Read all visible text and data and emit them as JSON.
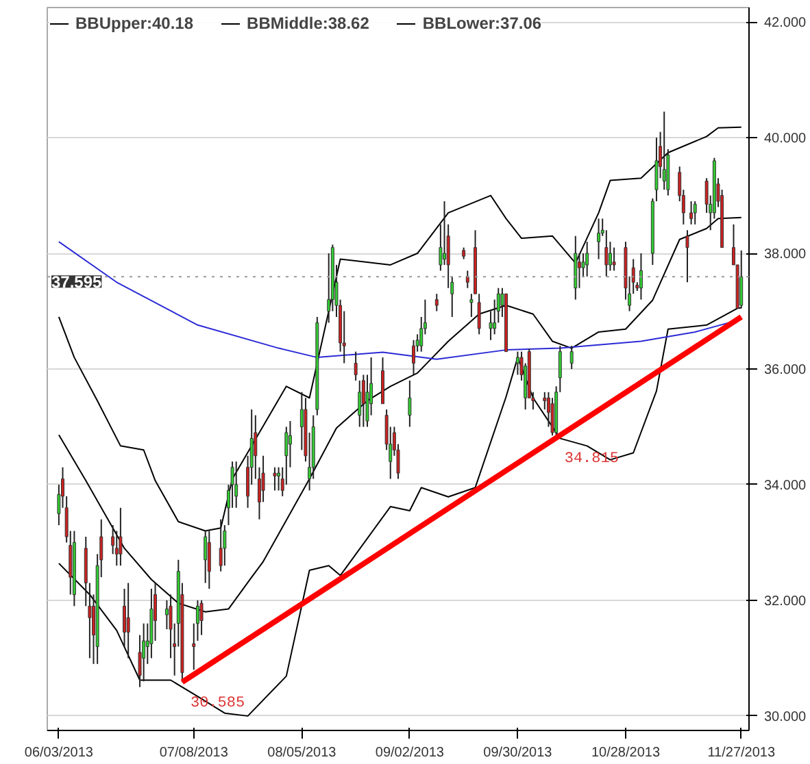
{
  "chart_data": {
    "type": "candlestick",
    "x": [
      "2013-06-03",
      "2013-06-04",
      "2013-06-05",
      "2013-06-06",
      "2013-06-07",
      "2013-06-10",
      "2013-06-11",
      "2013-06-12",
      "2013-06-13",
      "2013-06-14",
      "2013-06-17",
      "2013-06-18",
      "2013-06-19",
      "2013-06-20",
      "2013-06-21",
      "2013-06-24",
      "2013-06-25",
      "2013-06-26",
      "2013-06-27",
      "2013-06-28",
      "2013-07-01",
      "2013-07-02",
      "2013-07-03",
      "2013-07-04",
      "2013-07-05",
      "2013-07-08",
      "2013-07-09",
      "2013-07-10",
      "2013-07-11",
      "2013-07-12",
      "2013-07-15",
      "2013-07-16",
      "2013-07-17",
      "2013-07-18",
      "2013-07-19",
      "2013-07-22",
      "2013-07-23",
      "2013-07-24",
      "2013-07-25",
      "2013-07-26",
      "2013-07-29",
      "2013-07-30",
      "2013-07-31",
      "2013-08-01",
      "2013-08-02",
      "2013-08-05",
      "2013-08-06",
      "2013-08-07",
      "2013-08-08",
      "2013-08-09",
      "2013-08-12",
      "2013-08-13",
      "2013-08-14",
      "2013-08-15",
      "2013-08-16",
      "2013-08-19",
      "2013-08-20",
      "2013-08-21",
      "2013-08-22",
      "2013-08-23",
      "2013-08-26",
      "2013-08-27",
      "2013-08-28",
      "2013-08-29",
      "2013-08-30",
      "2013-09-02",
      "2013-09-03",
      "2013-09-04",
      "2013-09-05",
      "2013-09-06",
      "2013-09-09",
      "2013-09-10",
      "2013-09-11",
      "2013-09-12",
      "2013-09-13",
      "2013-09-16",
      "2013-09-17",
      "2013-09-18",
      "2013-09-19",
      "2013-09-20",
      "2013-09-23",
      "2013-09-24",
      "2013-09-25",
      "2013-09-26",
      "2013-09-27",
      "2013-09-30",
      "2013-10-01",
      "2013-10-02",
      "2013-10-03",
      "2013-10-04",
      "2013-10-07",
      "2013-10-08",
      "2013-10-09",
      "2013-10-10",
      "2013-10-11",
      "2013-10-14",
      "2013-10-15",
      "2013-10-16",
      "2013-10-17",
      "2013-10-18",
      "2013-10-21",
      "2013-10-22",
      "2013-10-23",
      "2013-10-24",
      "2013-10-25",
      "2013-10-28",
      "2013-10-29",
      "2013-10-30",
      "2013-10-31",
      "2013-11-01",
      "2013-11-04",
      "2013-11-05",
      "2013-11-06",
      "2013-11-07",
      "2013-11-08",
      "2013-11-11",
      "2013-11-12",
      "2013-11-13",
      "2013-11-14",
      "2013-11-15",
      "2013-11-18",
      "2013-11-19",
      "2013-11-20",
      "2013-11-21",
      "2013-11-22",
      "2013-11-25",
      "2013-11-26",
      "2013-11-27"
    ],
    "ohlc": [
      [
        33.5,
        34.0,
        33.3,
        33.83
      ],
      [
        34.1,
        34.3,
        33.6,
        33.8
      ],
      [
        33.6,
        33.8,
        33.0,
        33.1
      ],
      [
        32.95,
        33.2,
        32.1,
        32.4
      ],
      [
        32.1,
        33.2,
        31.9,
        33.0
      ],
      [
        32.9,
        33.1,
        31.9,
        32.3
      ],
      [
        31.9,
        32.3,
        31.0,
        31.7
      ],
      [
        31.9,
        32.1,
        30.9,
        31.4
      ],
      [
        31.2,
        32.8,
        30.9,
        32.6
      ],
      [
        33.1,
        33.4,
        32.4,
        32.7
      ],
      [
        33.1,
        33.3,
        32.8,
        32.95
      ],
      [
        32.9,
        33.2,
        32.6,
        32.8
      ],
      [
        33.1,
        33.6,
        32.6,
        32.8
      ],
      [
        31.9,
        32.2,
        31.2,
        31.45
      ],
      [
        31.7,
        32.3,
        31.0,
        31.45
      ],
      [
        31.1,
        31.4,
        30.5,
        30.7
      ],
      [
        31.0,
        31.6,
        30.6,
        31.3
      ],
      [
        31.2,
        31.6,
        30.9,
        31.3
      ],
      [
        31.25,
        32.2,
        31.0,
        31.85
      ],
      [
        32.1,
        32.3,
        31.3,
        31.65
      ],
      [
        31.75,
        32.0,
        31.5,
        31.85
      ],
      [
        31.9,
        32.1,
        31.0,
        31.5
      ],
      [
        31.25,
        31.6,
        30.7,
        31.2
      ],
      [
        31.6,
        32.7,
        31.2,
        32.5
      ],
      [
        32.1,
        32.3,
        30.585,
        30.75
      ],
      [
        31.25,
        31.6,
        30.8,
        31.2
      ],
      [
        31.6,
        32.0,
        31.3,
        31.9
      ],
      [
        31.95,
        32.0,
        31.4,
        31.65
      ],
      [
        32.7,
        33.2,
        32.3,
        33.1
      ],
      [
        33.0,
        33.2,
        32.2,
        32.5
      ],
      [
        32.9,
        33.4,
        32.5,
        32.6
      ],
      [
        32.9,
        33.3,
        32.6,
        33.2
      ],
      [
        33.6,
        34.0,
        33.3,
        33.9
      ],
      [
        34.0,
        34.4,
        33.6,
        34.3
      ],
      [
        33.8,
        34.4,
        33.6,
        34.0
      ],
      [
        34.3,
        34.5,
        33.6,
        33.8
      ],
      [
        34.3,
        35.3,
        34.0,
        34.8
      ],
      [
        34.9,
        35.2,
        34.1,
        34.5
      ],
      [
        34.1,
        34.3,
        33.4,
        33.7
      ],
      [
        34.2,
        34.5,
        33.7,
        33.9
      ],
      [
        34.2,
        34.3,
        33.9,
        34.15
      ],
      [
        34.15,
        34.3,
        33.9,
        34.2
      ],
      [
        34.1,
        34.3,
        33.8,
        33.9
      ],
      [
        34.5,
        35.0,
        34.0,
        34.9
      ],
      [
        34.7,
        35.1,
        34.3,
        34.85
      ],
      [
        35.0,
        35.6,
        34.6,
        35.3
      ],
      [
        35.3,
        35.5,
        34.4,
        34.5
      ],
      [
        34.1,
        34.9,
        33.9,
        34.3
      ],
      [
        34.3,
        35.2,
        34.1,
        35.0
      ],
      [
        35.3,
        36.9,
        35.2,
        36.8
      ],
      [
        37.0,
        38.0,
        36.8,
        37.2
      ],
      [
        37.2,
        38.15,
        37.0,
        38.1
      ],
      [
        37.1,
        37.8,
        36.9,
        37.5
      ],
      [
        37.1,
        37.2,
        36.3,
        36.45
      ],
      [
        36.45,
        37.0,
        36.1,
        36.4
      ],
      [
        36.1,
        36.3,
        35.8,
        35.9
      ],
      [
        35.2,
        35.8,
        35.0,
        35.6
      ],
      [
        35.8,
        35.9,
        35.0,
        35.4
      ],
      [
        35.1,
        35.9,
        35.0,
        35.6
      ],
      [
        35.4,
        36.2,
        35.2,
        35.75
      ],
      [
        35.97,
        36.2,
        35.4,
        35.4
      ],
      [
        35.2,
        35.3,
        34.6,
        34.7
      ],
      [
        34.4,
        35.0,
        34.1,
        34.7
      ],
      [
        34.9,
        35.0,
        34.5,
        34.6
      ],
      [
        34.6,
        34.7,
        34.1,
        34.2
      ],
      [
        35.2,
        35.8,
        35.0,
        35.5
      ],
      [
        36.4,
        36.5,
        35.9,
        36.1
      ],
      [
        36.4,
        36.6,
        36.3,
        36.5
      ],
      [
        36.4,
        36.9,
        36.3,
        36.7
      ],
      [
        36.7,
        37.2,
        36.6,
        36.8
      ],
      [
        37.2,
        37.3,
        37.0,
        37.1
      ],
      [
        37.8,
        38.5,
        37.7,
        38.1
      ],
      [
        37.9,
        38.9,
        37.8,
        38.0
      ],
      [
        38.3,
        38.5,
        37.4,
        37.8
      ],
      [
        37.3,
        37.6,
        36.9,
        37.5
      ],
      [
        38.05,
        38.1,
        37.9,
        37.95
      ],
      [
        37.6,
        37.7,
        37.4,
        37.5
      ],
      [
        37.15,
        37.3,
        36.9,
        37.2
      ],
      [
        38.1,
        38.4,
        37.3,
        37.3
      ],
      [
        37.15,
        37.3,
        36.6,
        36.7
      ],
      [
        36.7,
        37.0,
        36.5,
        36.8
      ],
      [
        36.7,
        37.2,
        36.6,
        36.8
      ],
      [
        37.0,
        37.4,
        36.8,
        37.3
      ],
      [
        37.1,
        37.4,
        36.9,
        37.3
      ],
      [
        37.3,
        37.3,
        36.3,
        36.3
      ],
      [
        36.1,
        36.3,
        35.9,
        36.2
      ],
      [
        36.2,
        36.3,
        35.8,
        35.9
      ],
      [
        35.5,
        36.1,
        35.3,
        36.05
      ],
      [
        36.3,
        36.35,
        35.5,
        35.5
      ],
      [
        35.5,
        35.6,
        35.3,
        35.45
      ],
      [
        35.5,
        35.6,
        35.3,
        35.45
      ],
      [
        35.5,
        35.6,
        35.0,
        35.25
      ],
      [
        35.4,
        35.5,
        34.85,
        34.9
      ],
      [
        34.9,
        35.7,
        34.815,
        35.6
      ],
      [
        35.85,
        36.4,
        35.6,
        36.3
      ],
      [
        36.1,
        36.4,
        36.0,
        36.3
      ],
      [
        37.4,
        38.3,
        37.2,
        38.0
      ],
      [
        37.85,
        38.0,
        37.4,
        37.75
      ],
      [
        37.75,
        38.0,
        37.6,
        37.85
      ],
      [
        37.8,
        38.2,
        37.6,
        38.0
      ],
      [
        38.2,
        38.6,
        37.9,
        38.35
      ],
      [
        38.35,
        38.6,
        38.3,
        38.4
      ],
      [
        38.1,
        38.4,
        37.6,
        37.8
      ],
      [
        37.8,
        38.2,
        37.7,
        38.0
      ],
      [
        37.85,
        38.1,
        37.7,
        37.8
      ],
      [
        38.1,
        38.2,
        37.2,
        37.4
      ],
      [
        37.1,
        37.6,
        37.0,
        37.3
      ],
      [
        37.75,
        37.9,
        37.3,
        37.5
      ],
      [
        37.45,
        37.5,
        37.35,
        37.4
      ],
      [
        37.4,
        38.0,
        37.2,
        37.7
      ],
      [
        38.0,
        38.95,
        37.8,
        38.9
      ],
      [
        39.1,
        40.0,
        38.9,
        39.6
      ],
      [
        39.85,
        40.1,
        39.3,
        39.5
      ],
      [
        39.25,
        40.45,
        39.1,
        39.45
      ],
      [
        39.1,
        39.8,
        39.0,
        39.7
      ],
      [
        39.4,
        39.5,
        38.9,
        39.0
      ],
      [
        39.0,
        39.1,
        38.5,
        38.7
      ],
      [
        38.3,
        38.4,
        37.5,
        38.1
      ],
      [
        38.7,
        38.9,
        38.5,
        38.6
      ],
      [
        38.7,
        38.9,
        38.5,
        38.85
      ],
      [
        39.25,
        39.3,
        38.7,
        38.85
      ],
      [
        38.7,
        39.0,
        38.4,
        38.85
      ],
      [
        38.7,
        39.65,
        38.6,
        39.6
      ],
      [
        39.2,
        39.3,
        38.8,
        38.9
      ],
      [
        39.0,
        39.1,
        38.1,
        38.1
      ],
      [
        38.1,
        38.5,
        37.8,
        37.8
      ],
      [
        37.8,
        37.8,
        37.05,
        37.05
      ],
      [
        37.1,
        38.05,
        37.05,
        37.595
      ]
    ],
    "series": [
      {
        "type": "line",
        "name": "BBUpper:40.18",
        "color": "#000000",
        "x": [
          "2013-06-03",
          "2013-06-07",
          "2013-06-13",
          "2013-06-19",
          "2013-06-25",
          "2013-06-28",
          "2013-07-04",
          "2013-07-11",
          "2013-07-15",
          "2013-07-18",
          "2013-07-23",
          "2013-08-01",
          "2013-08-07",
          "2013-08-15",
          "2013-08-28",
          "2013-09-04",
          "2013-09-12",
          "2013-09-23",
          "2013-09-27",
          "2013-10-01",
          "2013-10-09",
          "2013-10-15",
          "2013-10-21",
          "2013-10-24",
          "2013-11-01",
          "2013-11-08",
          "2013-11-18",
          "2013-11-21",
          "2013-11-27"
        ],
        "values": [
          36.9,
          36.2,
          35.45,
          34.67,
          34.6,
          34.07,
          33.36,
          33.2,
          33.25,
          34.1,
          34.67,
          35.7,
          35.5,
          37.9,
          37.8,
          38.0,
          38.7,
          39.0,
          38.6,
          38.26,
          38.3,
          37.83,
          38.7,
          39.26,
          39.3,
          39.74,
          40.02,
          40.17,
          40.18
        ]
      },
      {
        "type": "line",
        "name": "BBMiddle:38.62",
        "color": "#000000",
        "x": [
          "2013-06-03",
          "2013-06-10",
          "2013-06-20",
          "2013-06-27",
          "2013-07-04",
          "2013-07-11",
          "2013-07-17",
          "2013-07-23",
          "2013-07-26",
          "2013-08-07",
          "2013-08-14",
          "2013-08-22",
          "2013-08-28",
          "2013-09-04",
          "2013-09-12",
          "2013-09-20",
          "2013-09-27",
          "2013-10-04",
          "2013-10-09",
          "2013-10-14",
          "2013-10-21",
          "2013-10-28",
          "2013-11-04",
          "2013-11-11",
          "2013-11-18",
          "2013-11-21",
          "2013-11-27"
        ],
        "values": [
          34.86,
          34.07,
          32.9,
          32.36,
          31.95,
          31.8,
          31.85,
          32.4,
          32.67,
          34.1,
          34.98,
          35.45,
          35.7,
          35.93,
          36.48,
          36.95,
          37.1,
          36.95,
          36.48,
          36.36,
          36.64,
          36.69,
          37.19,
          38.24,
          38.43,
          38.6,
          38.62
        ]
      },
      {
        "type": "line",
        "name": "BBLower:37.06",
        "color": "#000000",
        "x": [
          "2013-06-03",
          "2013-06-11",
          "2013-06-18",
          "2013-06-24",
          "2013-07-02",
          "2013-07-08",
          "2013-07-16",
          "2013-07-22",
          "2013-08-01",
          "2013-08-07",
          "2013-08-12",
          "2013-08-15",
          "2013-08-28",
          "2013-09-02",
          "2013-09-05",
          "2013-09-12",
          "2013-09-19",
          "2013-09-27",
          "2013-09-30",
          "2013-10-04",
          "2013-10-11",
          "2013-10-18",
          "2013-10-24",
          "2013-10-30",
          "2013-11-05",
          "2013-11-08",
          "2013-11-18",
          "2013-11-26",
          "2013-11-27"
        ],
        "values": [
          32.64,
          32.1,
          31.48,
          30.62,
          30.62,
          30.38,
          30.05,
          30.0,
          30.69,
          32.52,
          32.6,
          32.43,
          33.62,
          33.55,
          33.95,
          33.79,
          33.95,
          35.52,
          36.2,
          35.5,
          34.8,
          34.67,
          34.43,
          34.55,
          35.62,
          36.69,
          36.76,
          37.05,
          37.06
        ]
      },
      {
        "type": "line",
        "color": "#2b2bd6",
        "x": [
          "2013-06-03",
          "2013-06-18",
          "2013-07-09",
          "2013-07-30",
          "2013-08-09",
          "2013-08-26",
          "2013-09-09",
          "2013-09-27",
          "2013-10-11",
          "2013-11-01",
          "2013-11-15",
          "2013-11-27"
        ],
        "values": [
          38.2,
          37.5,
          36.76,
          36.36,
          36.2,
          36.29,
          36.17,
          36.33,
          36.36,
          36.48,
          36.64,
          36.86
        ]
      },
      {
        "type": "line",
        "color": "#ff0000",
        "x": [
          "2013-07-05",
          "2013-11-27"
        ],
        "values": [
          30.585,
          36.9
        ]
      }
    ],
    "annotations": [
      {
        "text": "30.585",
        "x": "2013-07-05",
        "y": 30.585
      },
      {
        "text": "34.815",
        "x": "2013-10-10",
        "y": 34.815
      }
    ],
    "ref_lines": [
      {
        "axis": "y",
        "value": 37.595,
        "label": "37.595",
        "color": "#999999",
        "line_style": "dotted"
      }
    ],
    "xlim": [
      "2013-05-31",
      "2013-11-29"
    ],
    "ylim": [
      29.75,
      42.25
    ],
    "xticks": [
      {
        "value": "2013-06-03",
        "label": "06/03/2013"
      },
      {
        "value": "2013-07-08",
        "label": "07/08/2013"
      },
      {
        "value": "2013-08-05",
        "label": "08/05/2013"
      },
      {
        "value": "2013-09-02",
        "label": "09/02/2013"
      },
      {
        "value": "2013-09-30",
        "label": "09/30/2013"
      },
      {
        "value": "2013-10-28",
        "label": "10/28/2013"
      },
      {
        "value": "2013-11-27",
        "label": "11/27/2013"
      }
    ],
    "yticks": [
      {
        "value": 30,
        "label": "30.000"
      },
      {
        "value": 32,
        "label": "32.000"
      },
      {
        "value": 34,
        "label": "34.000"
      },
      {
        "value": 36,
        "label": "36.000"
      },
      {
        "value": 38,
        "label": "38.000"
      },
      {
        "value": 40,
        "label": "40.000"
      },
      {
        "value": 42,
        "label": "42.000"
      }
    ],
    "grid": "y",
    "legend": "top"
  }
}
